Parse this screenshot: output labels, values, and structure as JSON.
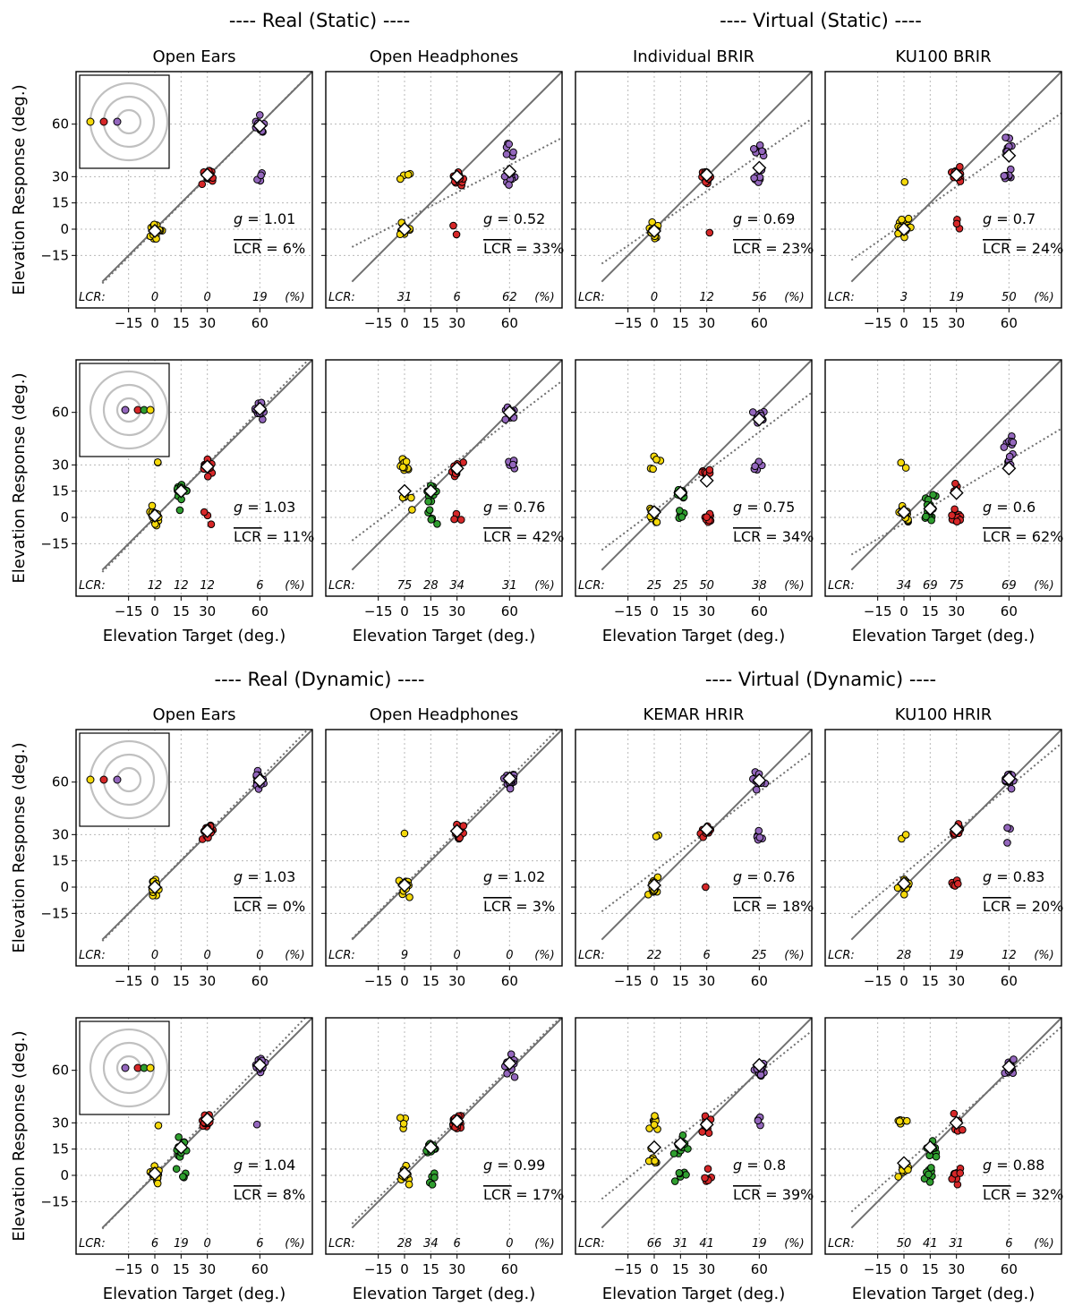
{
  "figure": {
    "group_titles": [
      "---- Real (Static) ----",
      "---- Virtual (Static) ----",
      "---- Real (Dynamic) ----",
      "---- Virtual (Dynamic) ----"
    ],
    "col_titles_static": [
      "Open Ears",
      "Open Headphones",
      "Individual BRIR",
      "KU100 BRIR"
    ],
    "col_titles_dynamic": [
      "Open Ears",
      "Open Headphones",
      "KEMAR HRIR",
      "KU100 HRIR"
    ],
    "ylabel": "Elevation Response (deg.)",
    "xlabel": "Elevation Target (deg.)",
    "lcr_label": "LCR:",
    "pct_label": "(%)",
    "g_prefix": "g",
    "lcr_mean_label": "LCR",
    "ticks": [
      "-15",
      "0",
      "15",
      "30",
      "60"
    ]
  },
  "chart_data": {
    "type": "scatter",
    "xlim": [
      -45,
      90
    ],
    "ylim": [
      -45,
      90
    ],
    "tick_values": [
      -15,
      0,
      15,
      30,
      60
    ],
    "grid": true,
    "colors": {
      "0": "#f5d90a",
      "15": "#2f9e2f",
      "30": "#d62728",
      "60": "#9467bd",
      "mean_marker": "#ffffff",
      "identity_line": "#707070",
      "fit_line": "#707070"
    },
    "rows": [
      {
        "condition": "Static",
        "targets": [
          0,
          30,
          60
        ],
        "panels": [
          {
            "title": "Open Ears",
            "g": "1.01",
            "lcr_mean": "6%",
            "lcr": [
              "0",
              "0",
              "19"
            ],
            "means": [
              -1,
              31,
              59
            ]
          },
          {
            "title": "Open Headphones",
            "g": "0.52",
            "lcr_mean": "33%",
            "lcr": [
              "31",
              "6",
              "62"
            ],
            "means": [
              0,
              30,
              33
            ]
          },
          {
            "title": "Individual BRIR",
            "g": "0.69",
            "lcr_mean": "23%",
            "lcr": [
              "0",
              "12",
              "56"
            ],
            "means": [
              -1,
              31,
              35
            ]
          },
          {
            "title": "KU100 BRIR",
            "g": "0.7",
            "lcr_mean": "24%",
            "lcr": [
              "3",
              "19",
              "50"
            ],
            "means": [
              0,
              31,
              42
            ]
          }
        ]
      },
      {
        "condition": "Static",
        "targets": [
          0,
          15,
          30,
          60
        ],
        "panels": [
          {
            "title": "Open Ears",
            "g": "1.03",
            "lcr_mean": "11%",
            "lcr": [
              "12",
              "12",
              "12",
              "6"
            ],
            "means": [
              1,
              15,
              29,
              62
            ]
          },
          {
            "title": "Open Headphones",
            "g": "0.76",
            "lcr_mean": "42%",
            "lcr": [
              "75",
              "28",
              "34",
              "31"
            ],
            "means": [
              15,
              15,
              28,
              60
            ]
          },
          {
            "title": "Individual BRIR",
            "g": "0.75",
            "lcr_mean": "34%",
            "lcr": [
              "25",
              "25",
              "50",
              "38"
            ],
            "means": [
              3,
              14,
              21,
              56
            ]
          },
          {
            "title": "KU100 BRIR",
            "g": "0.6",
            "lcr_mean": "62%",
            "lcr": [
              "34",
              "69",
              "75",
              "69"
            ],
            "means": [
              3,
              5,
              14,
              28
            ]
          }
        ]
      },
      {
        "condition": "Dynamic",
        "targets": [
          0,
          30,
          60
        ],
        "panels": [
          {
            "title": "Open Ears",
            "g": "1.03",
            "lcr_mean": "0%",
            "lcr": [
              "0",
              "0",
              "0"
            ],
            "means": [
              0,
              32,
              61
            ]
          },
          {
            "title": "Open Headphones",
            "g": "1.02",
            "lcr_mean": "3%",
            "lcr": [
              "9",
              "0",
              "0"
            ],
            "means": [
              1,
              32,
              62
            ]
          },
          {
            "title": "KEMAR HRIR",
            "g": "0.76",
            "lcr_mean": "18%",
            "lcr": [
              "22",
              "6",
              "25"
            ],
            "means": [
              1,
              33,
              61
            ]
          },
          {
            "title": "KU100 HRIR",
            "g": "0.83",
            "lcr_mean": "20%",
            "lcr": [
              "28",
              "19",
              "12"
            ],
            "means": [
              2,
              33,
              62
            ]
          }
        ]
      },
      {
        "condition": "Dynamic",
        "targets": [
          0,
          15,
          30,
          60
        ],
        "panels": [
          {
            "title": "Open Ears",
            "g": "1.04",
            "lcr_mean": "8%",
            "lcr": [
              "6",
              "19",
              "0",
              "6"
            ],
            "means": [
              1,
              16,
              32,
              63
            ]
          },
          {
            "title": "Open Headphones",
            "g": "0.99",
            "lcr_mean": "17%",
            "lcr": [
              "28",
              "34",
              "6",
              "0"
            ],
            "means": [
              1,
              16,
              31,
              64
            ]
          },
          {
            "title": "KEMAR HRIR",
            "g": "0.8",
            "lcr_mean": "39%",
            "lcr": [
              "66",
              "31",
              "41",
              "19"
            ],
            "means": [
              16,
              18,
              29,
              63
            ]
          },
          {
            "title": "KU100 HRIR",
            "g": "0.88",
            "lcr_mean": "32%",
            "lcr": [
              "50",
              "41",
              "31",
              "6"
            ],
            "means": [
              7,
              16,
              30,
              62
            ]
          }
        ]
      }
    ]
  }
}
